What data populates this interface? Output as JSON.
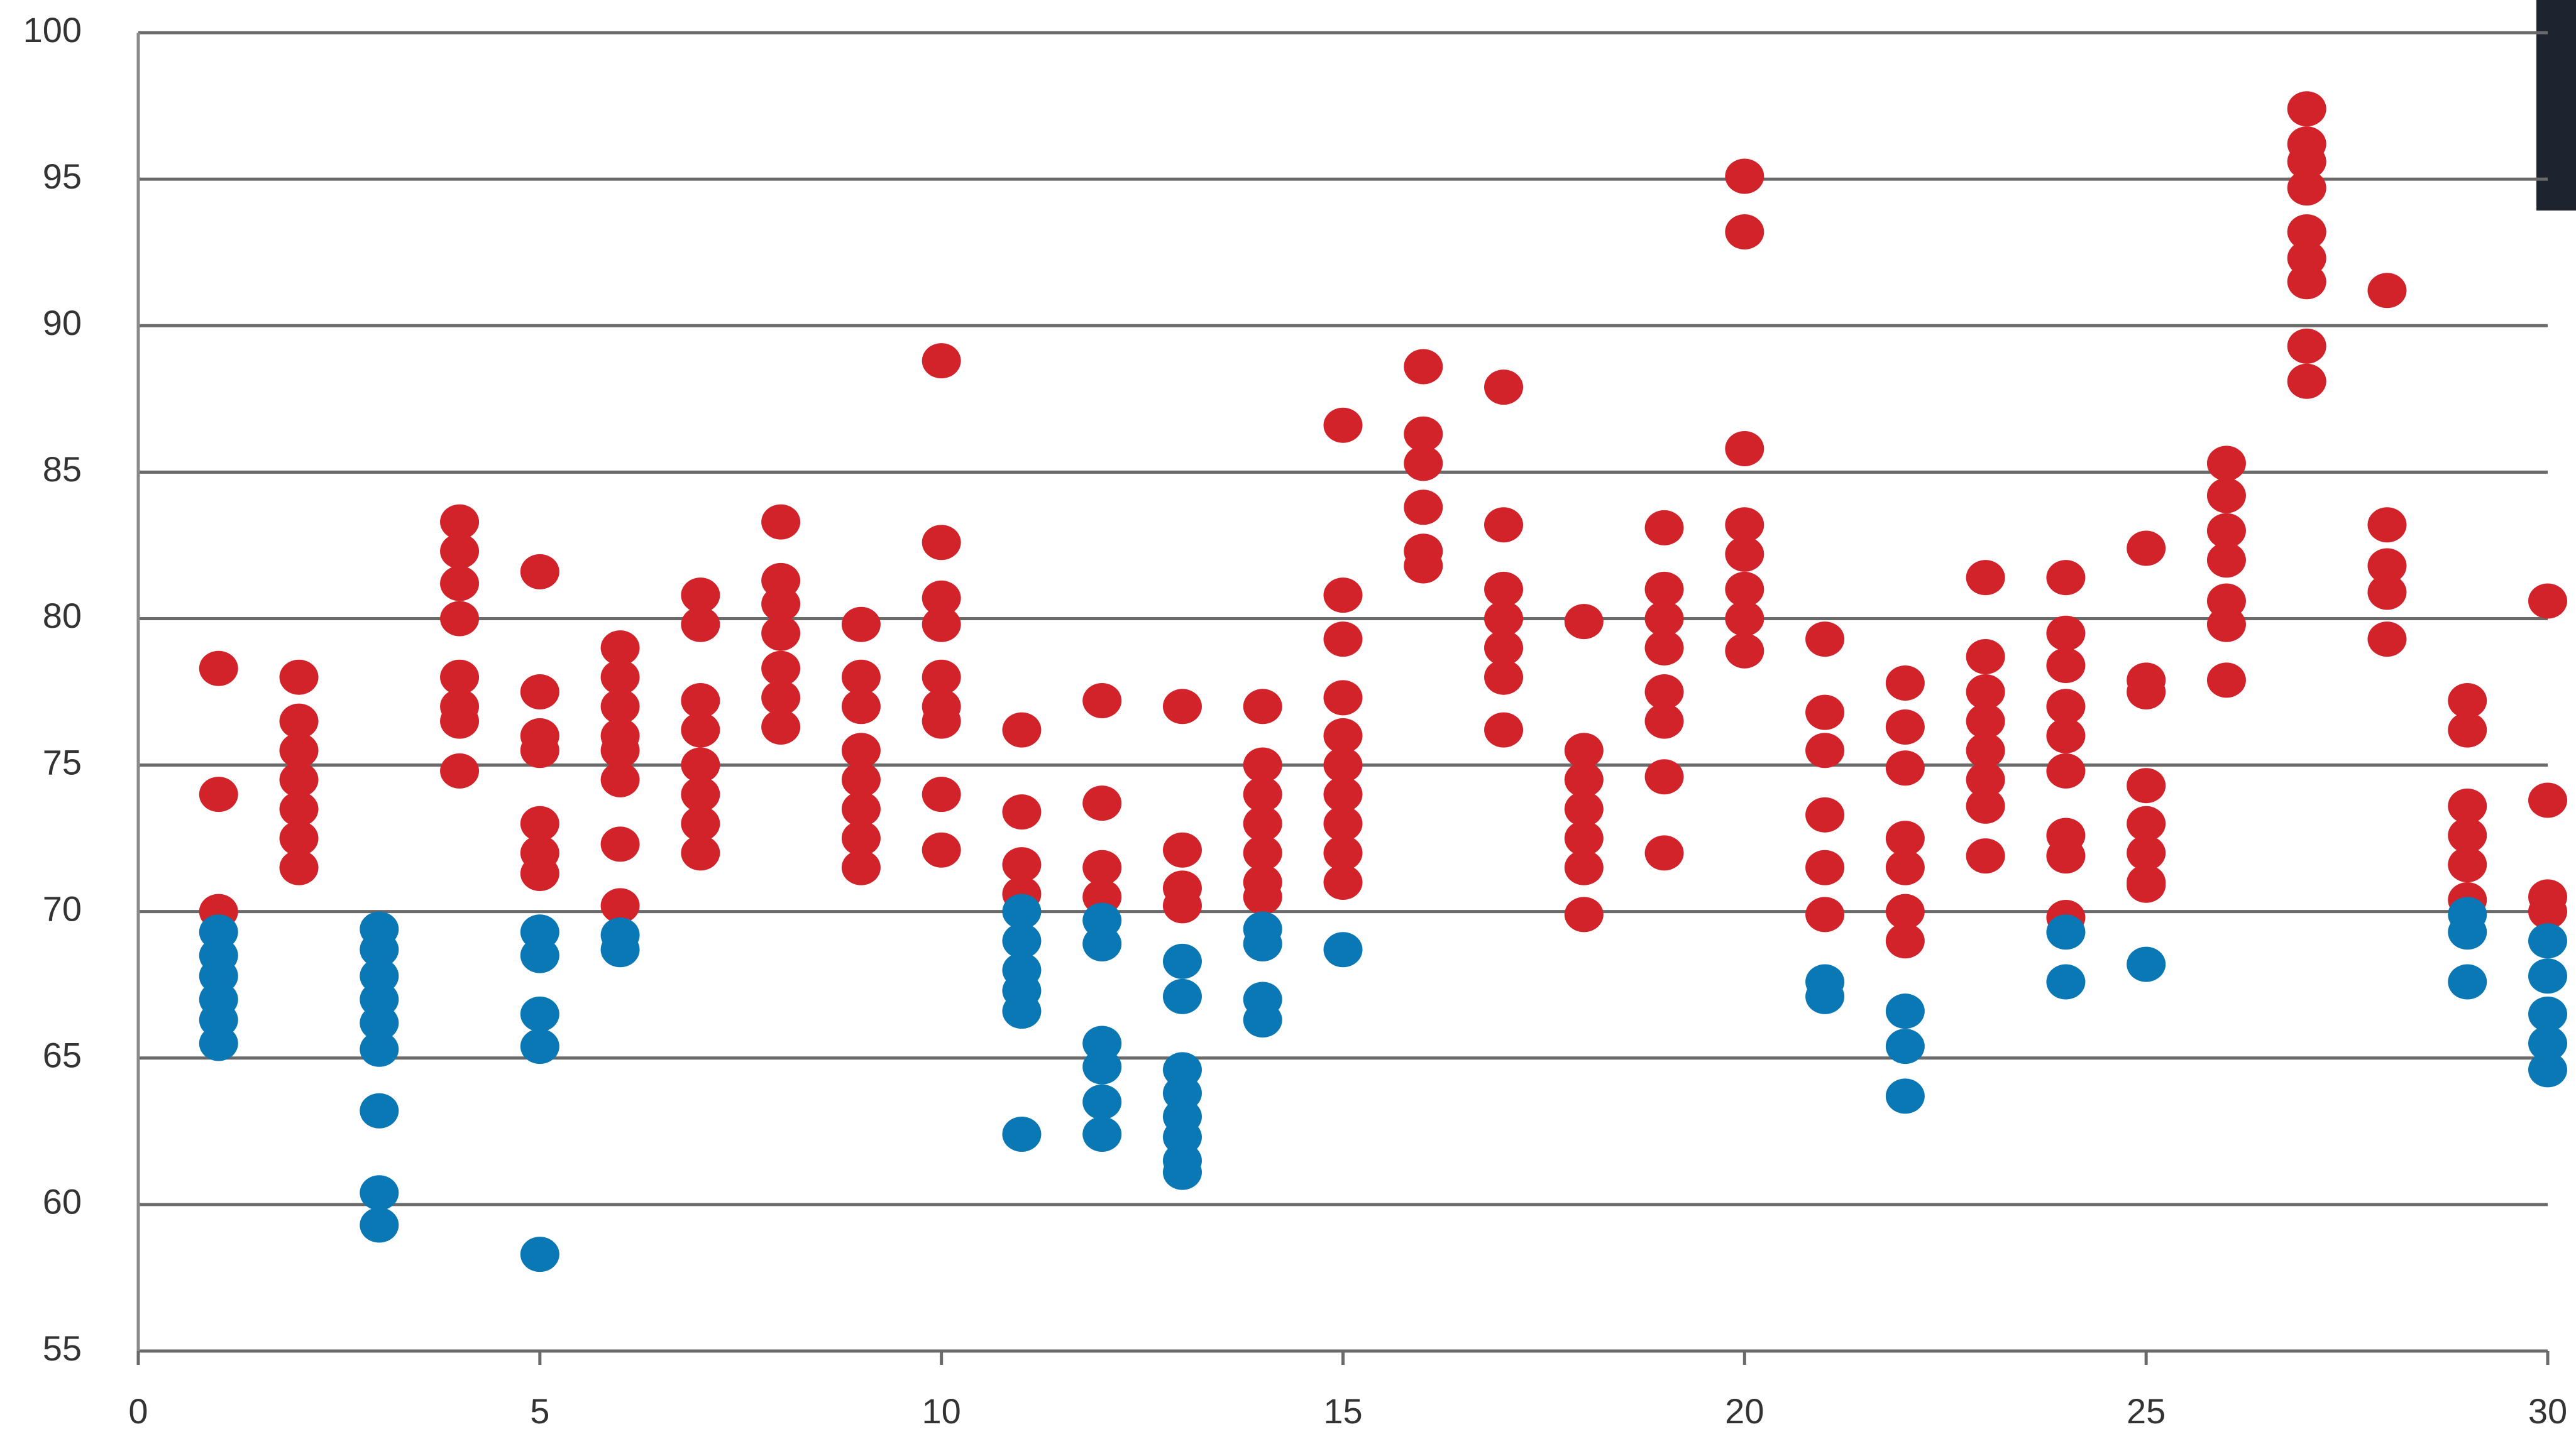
{
  "chart_data": {
    "type": "scatter",
    "xlim": [
      0,
      30
    ],
    "ylim": [
      55,
      100
    ],
    "xticks": [
      0,
      5,
      10,
      15,
      20,
      25,
      30
    ],
    "yticks": [
      55,
      60,
      65,
      70,
      75,
      80,
      85,
      90,
      95,
      100
    ],
    "grid": true,
    "series": [
      {
        "color": "#d2232a",
        "x": [
          1,
          1,
          1,
          2,
          2,
          2,
          2,
          2,
          2,
          2,
          4,
          4,
          4,
          4,
          4,
          4,
          4,
          4,
          5,
          5,
          5,
          5,
          5,
          5,
          5,
          6,
          6,
          6,
          6,
          6,
          6,
          6,
          6,
          7,
          7,
          7,
          7,
          7,
          7,
          7,
          7,
          8,
          8,
          8,
          8,
          8,
          8,
          8,
          9,
          9,
          9,
          9,
          9,
          9,
          9,
          9,
          10,
          10,
          10,
          10,
          10,
          10,
          10,
          10,
          10,
          11,
          11,
          11,
          11,
          12,
          12,
          12,
          12,
          13,
          13,
          13,
          13,
          14,
          14,
          14,
          14,
          14,
          14,
          14,
          15,
          15,
          15,
          15,
          15,
          15,
          15,
          15,
          15,
          15,
          16,
          16,
          16,
          16,
          16,
          16,
          17,
          17,
          17,
          17,
          17,
          17,
          17,
          18,
          18,
          18,
          18,
          18,
          18,
          18,
          19,
          19,
          19,
          19,
          19,
          19,
          19,
          19,
          20,
          20,
          20,
          20,
          20,
          20,
          20,
          20,
          21,
          21,
          21,
          21,
          21,
          21,
          22,
          22,
          22,
          22,
          22,
          22,
          22,
          23,
          23,
          23,
          23,
          23,
          23,
          23,
          23,
          24,
          24,
          24,
          24,
          24,
          24,
          24,
          24,
          24,
          25,
          25,
          25,
          25,
          25,
          25,
          25,
          25,
          26,
          26,
          26,
          26,
          26,
          26,
          26,
          27,
          27,
          27,
          27,
          27,
          27,
          27,
          27,
          27,
          28,
          28,
          28,
          28,
          28,
          29,
          29,
          29,
          29,
          29,
          29,
          30,
          30,
          30,
          30
        ],
        "values": [
          78.3,
          74,
          70,
          78,
          76.5,
          75.5,
          74.5,
          73.5,
          72.5,
          71.5,
          83.3,
          82.3,
          81.2,
          80,
          78,
          77,
          76.5,
          74.8,
          81.6,
          77.5,
          76,
          75.5,
          73,
          72,
          71.3,
          79,
          78,
          77,
          76,
          75.5,
          74.5,
          72.3,
          70.2,
          80.8,
          79.8,
          77.2,
          76.2,
          75,
          74,
          73,
          72,
          83.3,
          81.3,
          80.5,
          79.5,
          78.3,
          77.3,
          76.3,
          79.8,
          78,
          77,
          75.5,
          74.5,
          73.5,
          72.5,
          71.5,
          88.8,
          82.6,
          80.7,
          79.8,
          78,
          77,
          76.5,
          74,
          72.1,
          76.2,
          73.4,
          71.6,
          70.6,
          77.2,
          73.7,
          71.5,
          70.5,
          77,
          72.1,
          70.8,
          70.2,
          77,
          75,
          74,
          73,
          72,
          71,
          70.5,
          86.6,
          80.8,
          79.3,
          77.3,
          76,
          75,
          74,
          73,
          72,
          71,
          88.6,
          86.3,
          85.3,
          83.8,
          82.3,
          81.8,
          87.9,
          83.2,
          81,
          80,
          79,
          78,
          76.2,
          79.9,
          75.5,
          74.5,
          73.5,
          72.5,
          71.5,
          69.9,
          83.1,
          81,
          80,
          79,
          77.5,
          76.5,
          74.6,
          72,
          95.1,
          93.2,
          85.8,
          83.2,
          82.2,
          81,
          80,
          78.9,
          79.3,
          76.8,
          75.5,
          73.3,
          71.5,
          69.9,
          77.8,
          76.3,
          74.9,
          72.5,
          71.5,
          70,
          69,
          81.4,
          78.7,
          77.5,
          76.5,
          75.5,
          74.5,
          73.6,
          71.9,
          81.4,
          79.5,
          78.4,
          77,
          76,
          74.8,
          72.6,
          71.9,
          69.8,
          82.4,
          77.9,
          77.5,
          74.3,
          73,
          72,
          71,
          70.9,
          85.3,
          84.2,
          83,
          82,
          80.6,
          79.8,
          77.9,
          97.4,
          96.2,
          95.6,
          94.7,
          93.2,
          92.3,
          91.5,
          89.3,
          88.1,
          91.2,
          83.2,
          81.8,
          80.9,
          79.3,
          77.2,
          76.2,
          73.6,
          72.6,
          71.6,
          70.4,
          80.6,
          73.8,
          70.5,
          70
        ]
      },
      {
        "color": "#0a78b4",
        "x": [
          1,
          1,
          1,
          1,
          1,
          1,
          3,
          3,
          3,
          3,
          3,
          3,
          3,
          3,
          3,
          5,
          5,
          5,
          5,
          5,
          6,
          6,
          11,
          11,
          11,
          11,
          11,
          11,
          12,
          12,
          12,
          12,
          12,
          12,
          13,
          13,
          13,
          13,
          13,
          13,
          13,
          13,
          14,
          14,
          14,
          14,
          15,
          21,
          21,
          22,
          22,
          22,
          24,
          24,
          25,
          29,
          29,
          29,
          30,
          30,
          30,
          30,
          30
        ],
        "values": [
          69.3,
          68.5,
          67.8,
          67,
          66.3,
          65.5,
          69.4,
          68.7,
          67.8,
          67,
          66.2,
          65.3,
          63.2,
          60.4,
          59.3,
          69.3,
          68.5,
          66.5,
          65.4,
          58.3,
          69.2,
          68.7,
          70,
          69,
          68,
          67.3,
          66.6,
          62.4,
          69.7,
          68.9,
          65.5,
          64.7,
          63.5,
          62.4,
          68.3,
          67.1,
          64.6,
          63.8,
          63,
          62.3,
          61.5,
          61.1,
          69.4,
          68.9,
          67,
          66.3,
          68.7,
          67.6,
          67.1,
          66.6,
          65.4,
          63.7,
          69.3,
          67.6,
          68.2,
          69.9,
          69.3,
          67.6,
          69,
          67.8,
          66.5,
          65.5,
          64.6
        ]
      }
    ]
  }
}
